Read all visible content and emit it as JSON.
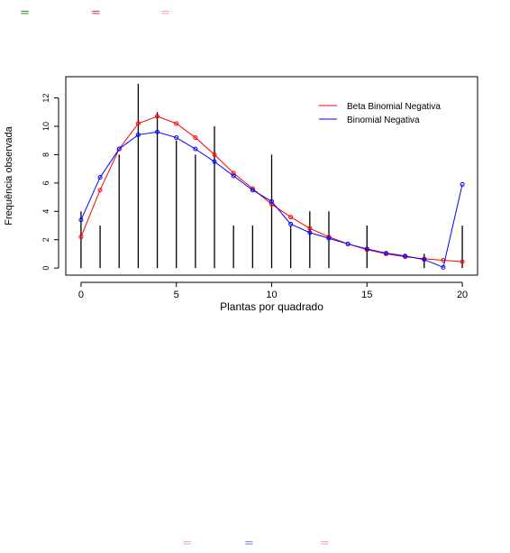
{
  "decorations": {
    "top": [
      {
        "glyph": "=",
        "color": "#3a9a2a"
      },
      {
        "glyph": "=",
        "color": "#d2485a"
      },
      {
        "glyph": "=",
        "color": "#f2a8b4"
      }
    ],
    "bottom": [
      {
        "glyph": "=",
        "color": "#f2a8b4"
      },
      {
        "glyph": "=",
        "color": "#7a8ce6"
      },
      {
        "glyph": "=",
        "color": "#f2a8b4"
      }
    ]
  },
  "chart_data": {
    "type": "line",
    "xlabel": "Plantas por quadrado",
    "ylabel": "Frequência observada",
    "xlim": [
      -0.8,
      20.8
    ],
    "ylim": [
      -0.5,
      13.5
    ],
    "xticks": [
      0,
      5,
      10,
      15,
      20
    ],
    "yticks": [
      0,
      2,
      4,
      6,
      8,
      10,
      12
    ],
    "grid": false,
    "legend_position": "top-right",
    "bars": {
      "x": [
        0,
        1,
        2,
        3,
        4,
        5,
        6,
        7,
        8,
        9,
        10,
        11,
        12,
        13,
        14,
        15,
        16,
        17,
        18,
        19,
        20
      ],
      "values": [
        4,
        3,
        8,
        13,
        11,
        9,
        8,
        10,
        3,
        3,
        8,
        3,
        4,
        4,
        0,
        3,
        0,
        0,
        1,
        0,
        3
      ],
      "color": "#000000"
    },
    "series": [
      {
        "name": "Beta Binomial Negativa",
        "color": "#ff0000",
        "x": [
          0,
          1,
          2,
          3,
          4,
          5,
          6,
          7,
          8,
          9,
          10,
          11,
          12,
          13,
          14,
          15,
          16,
          17,
          18,
          19,
          20
        ],
        "values": [
          2.2,
          5.5,
          8.4,
          10.2,
          10.7,
          10.2,
          9.2,
          8.0,
          6.7,
          5.6,
          4.5,
          3.6,
          2.8,
          2.2,
          1.7,
          1.3,
          1.0,
          0.8,
          0.65,
          0.55,
          0.45
        ]
      },
      {
        "name": "Binomial Negativa",
        "color": "#0000ff",
        "x": [
          0,
          1,
          2,
          3,
          4,
          5,
          6,
          7,
          8,
          9,
          10,
          11,
          12,
          13,
          14,
          15,
          16,
          17,
          18,
          19,
          20
        ],
        "values": [
          3.4,
          6.4,
          8.4,
          9.4,
          9.6,
          9.2,
          8.4,
          7.5,
          6.5,
          5.5,
          4.7,
          3.1,
          2.5,
          2.1,
          1.7,
          1.35,
          1.05,
          0.85,
          0.6,
          0.05,
          5.9
        ]
      }
    ]
  }
}
